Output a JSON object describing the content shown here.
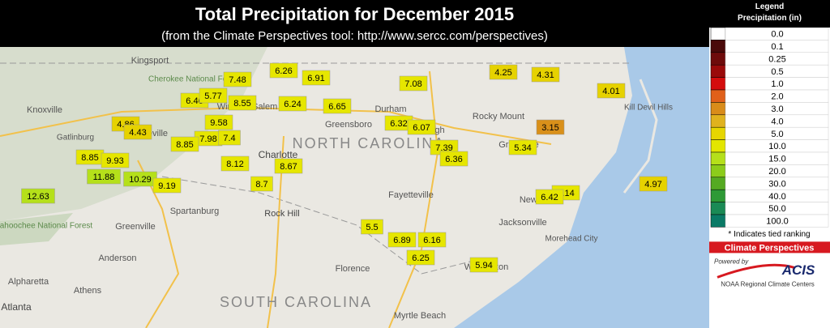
{
  "header": {
    "title": "Total Precipitation for December 2015",
    "subtitle": "(from the Climate Perspectives tool: http://www.sercc.com/perspectives)"
  },
  "places": [
    "Kingsport",
    "Cherokee National Forest",
    "Knoxville",
    "Gatlinburg",
    "Asheville",
    "Winston-Salem",
    "Greensboro",
    "Durham",
    "Raleigh",
    "Rocky Mount",
    "Kill Devil Hills",
    "NORTH CAROLINA",
    "Greenville",
    "Charlotte",
    "Rock Hill",
    "Spartanburg",
    "Greenville",
    "Fayetteville",
    "Jacksonville",
    "New Bern",
    "Morehead City",
    "Chattahoochee National Forest",
    "Anderson",
    "Alpharetta",
    "Athens",
    "Atlanta",
    "Florence",
    "Myrtle Beach",
    "Wilmington",
    "SOUTH CAROLINA"
  ],
  "stations": [
    {
      "value": "6.26",
      "color": "#e6e600"
    },
    {
      "value": "7.48",
      "color": "#e6e600"
    },
    {
      "value": "6.91",
      "color": "#e6e600"
    },
    {
      "value": "7.08",
      "color": "#e6e600"
    },
    {
      "value": "4.25",
      "color": "#e6d200"
    },
    {
      "value": "4.31",
      "color": "#e6d200"
    },
    {
      "value": "4.01",
      "color": "#e6d200"
    },
    {
      "value": "6.46",
      "color": "#e6e600"
    },
    {
      "value": "5.77",
      "color": "#e6e600"
    },
    {
      "value": "8.55",
      "color": "#e6e600"
    },
    {
      "value": "6.24",
      "color": "#e6e600"
    },
    {
      "value": "6.65",
      "color": "#e6e600"
    },
    {
      "value": "6.32",
      "color": "#e6e600"
    },
    {
      "value": "6.07",
      "color": "#e6e600"
    },
    {
      "value": "4.86",
      "color": "#e6d200"
    },
    {
      "value": "4.43",
      "color": "#e6d200"
    },
    {
      "value": "9.58",
      "color": "#e6e600"
    },
    {
      "value": "7.98",
      "color": "#e6e600"
    },
    {
      "value": "7.4",
      "color": "#e6e600"
    },
    {
      "value": "8.85",
      "color": "#e6e600"
    },
    {
      "value": "3.15",
      "color": "#d9901a"
    },
    {
      "value": "7.39",
      "color": "#e6e600"
    },
    {
      "value": "5.34",
      "color": "#e6e600"
    },
    {
      "value": "6.36",
      "color": "#e6e600"
    },
    {
      "value": "8.85",
      "color": "#e6e600"
    },
    {
      "value": "9.93",
      "color": "#e6e600"
    },
    {
      "value": "8.12",
      "color": "#e6e600"
    },
    {
      "value": "8.67",
      "color": "#e6e600"
    },
    {
      "value": "11.88",
      "color": "#b5e01a"
    },
    {
      "value": "10.29",
      "color": "#b5e01a"
    },
    {
      "value": "9.19",
      "color": "#e6e600"
    },
    {
      "value": "8.7",
      "color": "#e6e600"
    },
    {
      "value": "4.97",
      "color": "#e6d200"
    },
    {
      "value": "0.14",
      "color": "#e6e600"
    },
    {
      "value": "6.42",
      "color": "#e6e600"
    },
    {
      "value": "12.63",
      "color": "#b5e01a"
    },
    {
      "value": "5.5",
      "color": "#e6e600"
    },
    {
      "value": "6.89",
      "color": "#e6e600"
    },
    {
      "value": "6.16",
      "color": "#e6e600"
    },
    {
      "value": "6.25",
      "color": "#e6e600"
    },
    {
      "value": "5.94",
      "color": "#e6e600"
    }
  ],
  "legend": {
    "title": "Legend",
    "subtitle": "Precipitation (in)",
    "entries": [
      {
        "label": "0.0",
        "color": "#ffffff"
      },
      {
        "label": "0.1",
        "color": "#4a0a0a"
      },
      {
        "label": "0.25",
        "color": "#6e0b0b"
      },
      {
        "label": "0.5",
        "color": "#9a0a0a"
      },
      {
        "label": "1.0",
        "color": "#d40d0d"
      },
      {
        "label": "2.0",
        "color": "#e0601a"
      },
      {
        "label": "3.0",
        "color": "#d98c1a"
      },
      {
        "label": "4.0",
        "color": "#e0b21e"
      },
      {
        "label": "5.0",
        "color": "#e6d600"
      },
      {
        "label": "10.0",
        "color": "#e3e600"
      },
      {
        "label": "15.0",
        "color": "#b5e01a"
      },
      {
        "label": "20.0",
        "color": "#8ccc1a"
      },
      {
        "label": "30.0",
        "color": "#55aa22"
      },
      {
        "label": "40.0",
        "color": "#2e9a36"
      },
      {
        "label": "50.0",
        "color": "#1a8a55"
      },
      {
        "label": "100.0",
        "color": "#0a7a66"
      }
    ],
    "note": "* Indicates tied ranking",
    "banner": "Climate Perspectives",
    "powered_by": "Powered by",
    "acis": "ACIS",
    "rcc": "NOAA Regional Climate Centers"
  }
}
